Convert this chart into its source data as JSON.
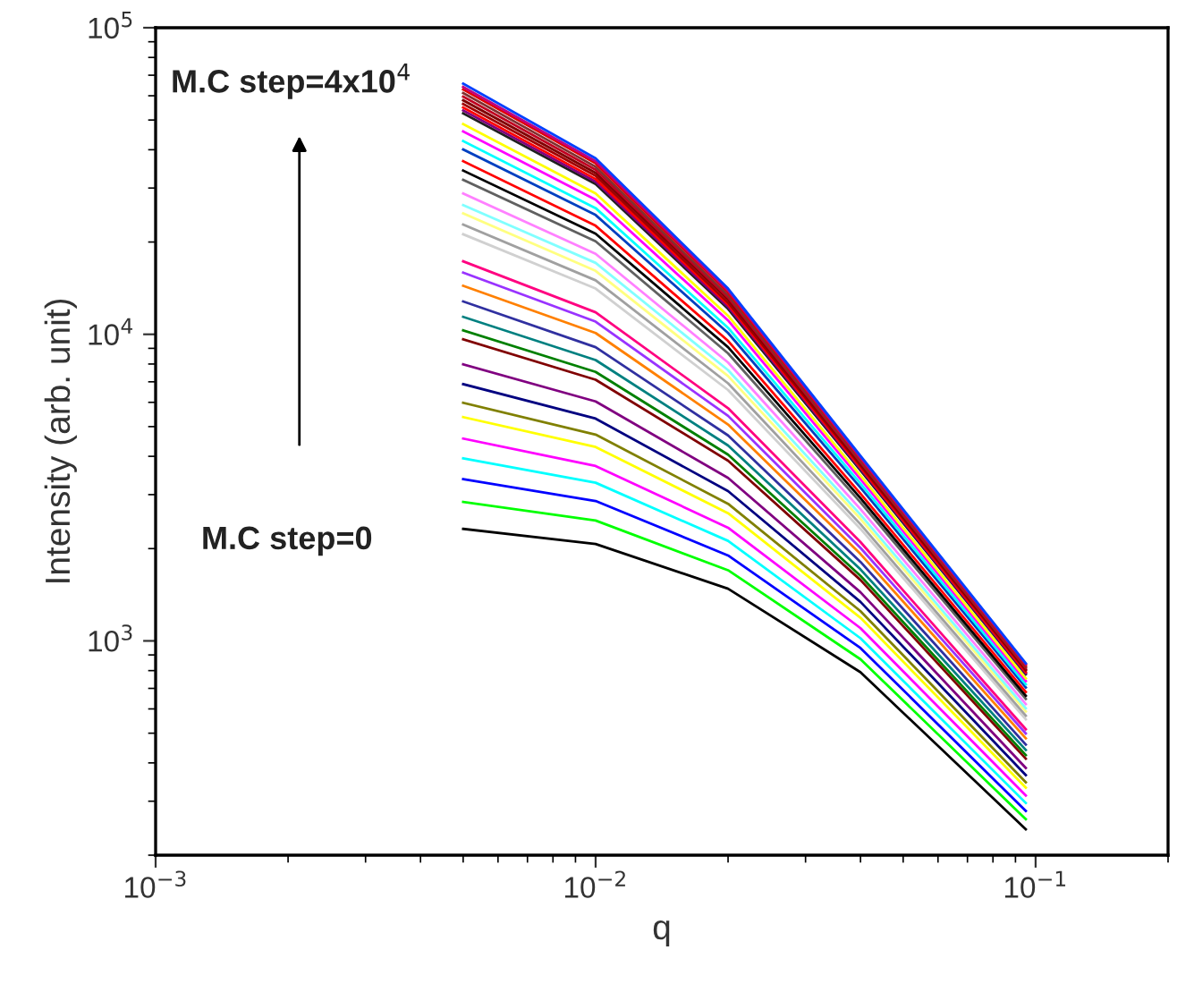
{
  "chart_data": {
    "type": "line",
    "xlabel": "q",
    "ylabel": "Intensity (arb. unit)",
    "log": "xy",
    "xlim": [
      0.001,
      0.2
    ],
    "ylim": [
      200,
      100000
    ],
    "xticks": [
      {
        "value": 0.001,
        "label": "10$^{−3}$"
      },
      {
        "value": 0.01,
        "label": "10$^{−2}$"
      },
      {
        "value": 0.1,
        "label": "10$^{−1}$"
      }
    ],
    "yticks": [
      {
        "value": 1000,
        "label": "10$^{3}$"
      },
      {
        "value": 10000,
        "label": "10$^{4}$"
      },
      {
        "value": 100000,
        "label": "10$^{5}$"
      }
    ],
    "grid": false,
    "marker": "none",
    "line_style": "solid",
    "annotations": [
      "M.C step=4x10$^{4}$",
      "M.C step=0"
    ],
    "x": [
      0.005,
      0.01,
      0.02,
      0.04,
      0.095
    ],
    "series": [
      {
        "color": "#000000",
        "values": [
          2320,
          2070,
          1480,
          790,
          243
        ]
      },
      {
        "color": "#00ff00",
        "values": [
          2840,
          2470,
          1700,
          871,
          262
        ]
      },
      {
        "color": "#0000ff",
        "values": [
          3370,
          2860,
          1900,
          948,
          279
        ]
      },
      {
        "color": "#00ffff",
        "values": [
          3940,
          3280,
          2120,
          1020,
          296
        ]
      },
      {
        "color": "#ff00ff",
        "values": [
          4570,
          3720,
          2340,
          1100,
          313
        ]
      },
      {
        "color": "#ffff00",
        "values": [
          5370,
          4290,
          2610,
          1190,
          332
        ]
      },
      {
        "color": "#808000",
        "values": [
          5980,
          4710,
          2800,
          1250,
          346
        ]
      },
      {
        "color": "#000080",
        "values": [
          6880,
          5310,
          3080,
          1340,
          365
        ]
      },
      {
        "color": "#800080",
        "values": [
          7980,
          6040,
          3400,
          1440,
          385
        ]
      },
      {
        "color": "#800000",
        "values": [
          9630,
          7110,
          3870,
          1580,
          413
        ]
      },
      {
        "color": "#008000",
        "values": [
          10300,
          7540,
          4050,
          1630,
          424
        ]
      },
      {
        "color": "#008080",
        "values": [
          11400,
          8240,
          4340,
          1710,
          441
        ]
      },
      {
        "color": "#3030a0",
        "values": [
          12800,
          9080,
          4680,
          1810,
          459
        ]
      },
      {
        "color": "#ff8000",
        "values": [
          14400,
          10100,
          5080,
          1920,
          481
        ]
      },
      {
        "color": "#9933ff",
        "values": [
          15900,
          11000,
          5420,
          2010,
          499
        ]
      },
      {
        "color": "#ff0080",
        "values": [
          17300,
          11800,
          5740,
          2100,
          515
        ]
      },
      {
        "color": "#d0d0d0",
        "values": [
          21200,
          14100,
          6580,
          2320,
          555
        ]
      },
      {
        "color": "#a0a0a0",
        "values": [
          22800,
          15000,
          6920,
          2400,
          570
        ]
      },
      {
        "color": "#ffff80",
        "values": [
          24800,
          16100,
          7310,
          2500,
          589
        ]
      },
      {
        "color": "#80ffff",
        "values": [
          26400,
          17100,
          7640,
          2580,
          603
        ]
      },
      {
        "color": "#ff80ff",
        "values": [
          28800,
          18300,
          8090,
          2690,
          622
        ]
      },
      {
        "color": "#606060",
        "values": [
          31900,
          20100,
          8670,
          2830,
          647
        ]
      },
      {
        "color": "#000000",
        "values": [
          34200,
          21300,
          9080,
          2920,
          662
        ]
      },
      {
        "color": "#ff0000",
        "values": [
          36700,
          22600,
          9520,
          3020,
          681
        ]
      },
      {
        "color": "#0040c0",
        "values": [
          40100,
          24500,
          10100,
          3160,
          705
        ]
      },
      {
        "color": "#00ffff",
        "values": [
          42700,
          25800,
          10500,
          3260,
          721
        ]
      },
      {
        "color": "#ff00ff",
        "values": [
          45900,
          27500,
          11100,
          3370,
          740
        ]
      },
      {
        "color": "#ffff00",
        "values": [
          48500,
          28800,
          11500,
          3460,
          755
        ]
      },
      {
        "color": "#202020",
        "values": [
          52600,
          30900,
          12100,
          3600,
          778
        ]
      },
      {
        "color": "#800080",
        "values": [
          53700,
          31500,
          12300,
          3640,
          785
        ]
      },
      {
        "color": "#ff0000",
        "values": [
          54900,
          32100,
          12500,
          3680,
          791
        ]
      },
      {
        "color": "#a00000",
        "values": [
          56400,
          32900,
          12700,
          3730,
          800
        ]
      },
      {
        "color": "#800000",
        "values": [
          58000,
          33600,
          13000,
          3780,
          807
        ]
      },
      {
        "color": "#c00020",
        "values": [
          59600,
          34400,
          13200,
          3830,
          816
        ]
      },
      {
        "color": "#803030",
        "values": [
          61200,
          35200,
          13400,
          3870,
          824
        ]
      },
      {
        "color": "#e00000",
        "values": [
          62900,
          36100,
          13700,
          3930,
          832
        ]
      },
      {
        "color": "#c00080",
        "values": [
          64100,
          36700,
          13900,
          3960,
          839
        ]
      },
      {
        "color": "#0040ff",
        "values": [
          65700,
          37500,
          14100,
          4010,
          845
        ]
      }
    ]
  }
}
